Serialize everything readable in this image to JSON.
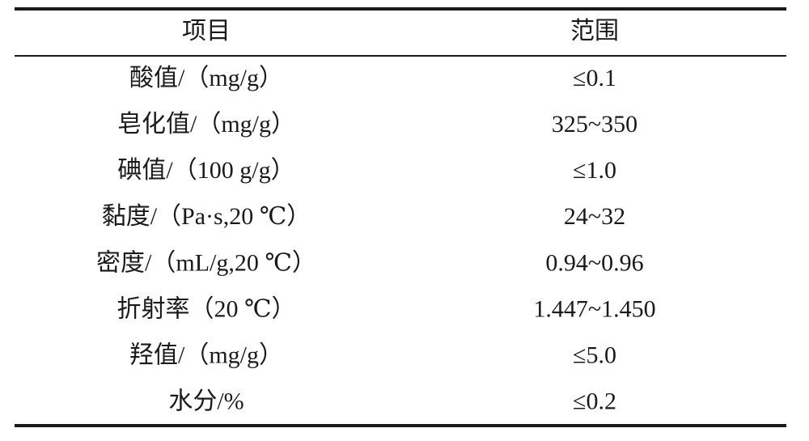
{
  "table": {
    "header": [
      "项目",
      "范围"
    ],
    "rows": [
      [
        "酸值/（mg/g）",
        "≤0.1"
      ],
      [
        "皂化值/（mg/g）",
        "325~350"
      ],
      [
        "碘值/（100 g/g）",
        "≤1.0"
      ],
      [
        "黏度/（Pa·s,20 ℃）",
        "24~32"
      ],
      [
        "密度/（mL/g,20 ℃）",
        "0.94~0.96"
      ],
      [
        "折射率（20 ℃）",
        "1.447~1.450"
      ],
      [
        "羟值/（mg/g）",
        "≤5.0"
      ],
      [
        "水分/%",
        "≤0.2"
      ]
    ]
  }
}
